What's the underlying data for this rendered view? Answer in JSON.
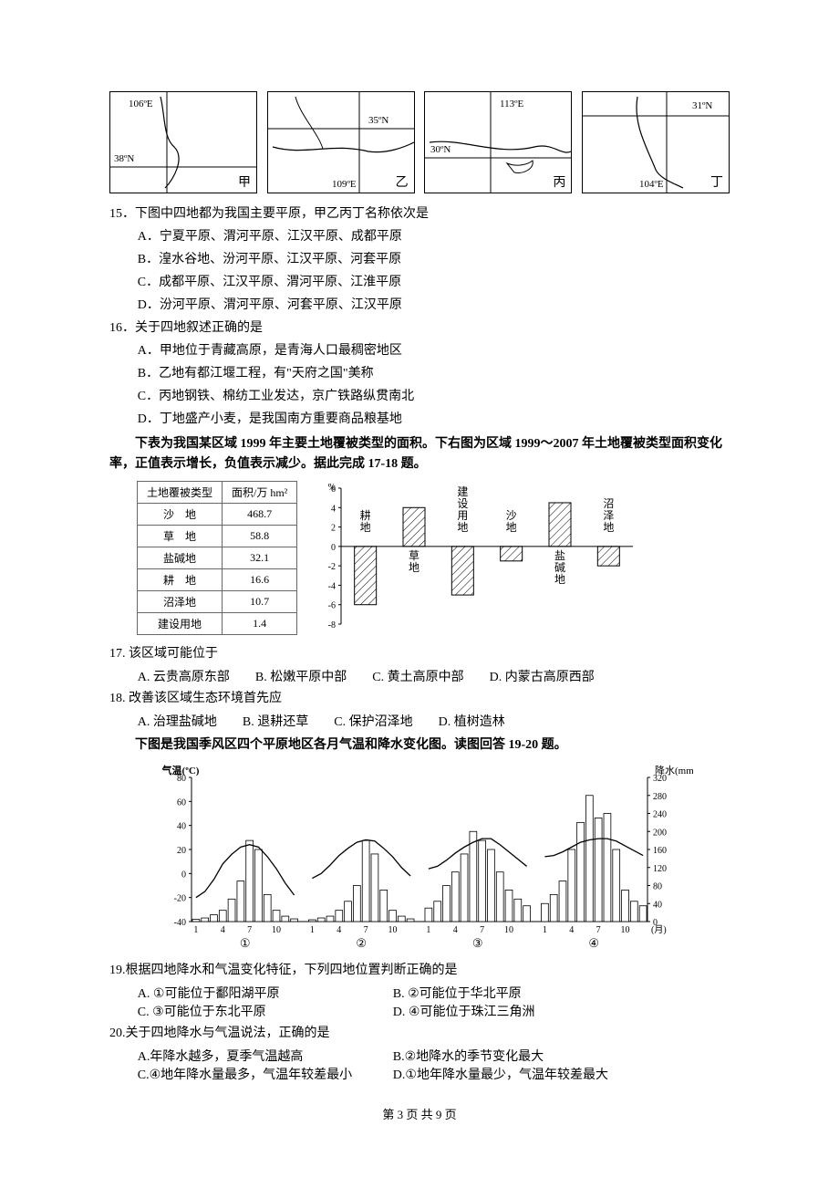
{
  "maps": [
    {
      "name": "甲",
      "lon": "106ºE",
      "lat": "38ºN"
    },
    {
      "name": "乙",
      "lon": "109ºE",
      "lat": "35ºN"
    },
    {
      "name": "丙",
      "lon": "113ºE",
      "lat": "30ºN"
    },
    {
      "name": "丁",
      "lon": "104ºE",
      "lat": "31ºN"
    }
  ],
  "q15": {
    "stem": "15．下图中四地都为我国主要平原，甲乙丙丁名称依次是",
    "A": "A．宁夏平原、渭河平原、江汉平原、成都平原",
    "B": "B．湟水谷地、汾河平原、江汉平原、河套平原",
    "C": "C．成都平原、江汉平原、渭河平原、江淮平原",
    "D": "D．汾河平原、渭河平原、河套平原、江汉平原"
  },
  "q16": {
    "stem": "16．关于四地叙述正确的是",
    "A": "A．甲地位于青藏高原，是青海人口最稠密地区",
    "B": "B．乙地有都江堰工程，有\"天府之国\"美称",
    "C": "C．丙地钢铁、棉纺工业发达，京广铁路纵贯南北",
    "D": "D．丁地盛产小麦，是我国南方重要商品粮基地"
  },
  "intro17": "下表为我国某区域 1999 年主要土地覆被类型的面积。下右图为区域 1999～2007 年土地覆被类型面积变化率，正值表示增长，负值表示减少。据此完成 17-18 题。",
  "landcover_table": {
    "header": [
      "土地覆被类型",
      "面积/万 hm²"
    ],
    "rows": [
      [
        "沙　地",
        "468.7"
      ],
      [
        "草　地",
        "58.8"
      ],
      [
        "盐碱地",
        "32.1"
      ],
      [
        "耕　地",
        "16.6"
      ],
      [
        "沼泽地",
        "10.7"
      ],
      [
        "建设用地",
        "1.4"
      ]
    ]
  },
  "change_chart": {
    "type": "bar",
    "y_unit": "%",
    "ylim": [
      -8,
      6
    ],
    "ytick_step": 2,
    "axis_color": "#000000",
    "bar_fill": "#ffffff",
    "bar_hatch": "diag",
    "bars": [
      {
        "label": "耕地",
        "value": -6.0,
        "label_vert": true
      },
      {
        "label": "草地",
        "value": 4.0,
        "label_vert": true
      },
      {
        "label": "建设用地",
        "value": -5.0,
        "label_vert": true
      },
      {
        "label": "沙地",
        "value": -1.5,
        "label_vert": true
      },
      {
        "label": "盐碱地",
        "value": 4.5,
        "label_vert": true
      },
      {
        "label": "沼泽地",
        "value": -2.0,
        "label_vert": true
      }
    ]
  },
  "q17": {
    "stem": "17. 该区域可能位于",
    "A": "A. 云贵高原东部",
    "B": "B. 松嫩平原中部",
    "C": "C. 黄土高原中部",
    "D": "D. 内蒙古高原西部"
  },
  "q18": {
    "stem": "18. 改善该区域生态环境首先应",
    "A": "A. 治理盐碱地",
    "B": "B. 退耕还草",
    "C": "C. 保护沼泽地",
    "D": "D. 植树造林"
  },
  "intro19": "下图是我国季风区四个平原地区各月气温和降水变化图。读图回答 19-20 题。",
  "climate_chart": {
    "type": "climate-bar-line",
    "temp_axis": {
      "label": "气温(ºC)",
      "min": -40,
      "max": 80,
      "step": 20
    },
    "precip_axis": {
      "label": "降水(mm)",
      "min": 0,
      "max": 320,
      "step": 40
    },
    "x_ticks": [
      "1",
      "4",
      "7",
      "10"
    ],
    "x_unit": "(月)",
    "panel_labels": [
      "①",
      "②",
      "③",
      "④"
    ],
    "line_color": "#000000",
    "bar_color": "#ffffff",
    "bar_border": "#000000",
    "panels": [
      {
        "precip": [
          5,
          8,
          15,
          25,
          50,
          90,
          180,
          160,
          60,
          25,
          12,
          6
        ],
        "temp": [
          -20,
          -15,
          -5,
          8,
          16,
          22,
          24,
          22,
          14,
          4,
          -8,
          -18
        ]
      },
      {
        "precip": [
          4,
          8,
          12,
          25,
          45,
          80,
          180,
          150,
          70,
          25,
          12,
          6
        ],
        "temp": [
          -4,
          0,
          7,
          15,
          21,
          26,
          28,
          27,
          21,
          14,
          5,
          -2
        ]
      },
      {
        "precip": [
          30,
          45,
          80,
          110,
          150,
          200,
          180,
          160,
          110,
          70,
          50,
          35
        ],
        "temp": [
          4,
          6,
          11,
          17,
          22,
          26,
          29,
          29,
          24,
          18,
          12,
          6
        ]
      },
      {
        "precip": [
          40,
          60,
          90,
          160,
          220,
          280,
          230,
          240,
          160,
          70,
          45,
          35
        ],
        "temp": [
          14,
          15,
          18,
          22,
          26,
          28,
          29,
          29,
          27,
          23,
          19,
          15
        ]
      }
    ]
  },
  "q19": {
    "stem": "19.根据四地降水和气温变化特征，下列四地位置判断正确的是",
    "A": "A. ①可能位于鄱阳湖平原",
    "B": "B. ②可能位于华北平原",
    "C": "C. ③可能位于东北平原",
    "D": "D. ④可能位于珠江三角洲"
  },
  "q20": {
    "stem": "20.关于四地降水与气温说法，正确的是",
    "A": "A.年降水越多，夏季气温越高",
    "B": "B.②地降水的季节变化最大",
    "C": "C.④地年降水量最多，气温年较差最小",
    "D": "D.①地年降水量最少，气温年较差最大"
  },
  "footer": "第 3 页 共 9 页"
}
